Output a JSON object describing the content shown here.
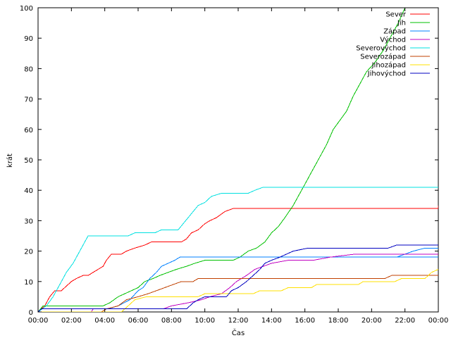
{
  "chart_data": {
    "type": "line",
    "title": "",
    "xlabel": "Čas",
    "ylabel": "krát",
    "xlim": [
      0,
      24
    ],
    "ylim": [
      0,
      100
    ],
    "grid": false,
    "legend_position": "top-right",
    "x_ticks": [
      {
        "v": 0,
        "label": "00:00"
      },
      {
        "v": 2,
        "label": "02:00"
      },
      {
        "v": 4,
        "label": "04:00"
      },
      {
        "v": 6,
        "label": "06:00"
      },
      {
        "v": 8,
        "label": "08:00"
      },
      {
        "v": 10,
        "label": "10:00"
      },
      {
        "v": 12,
        "label": "12:00"
      },
      {
        "v": 14,
        "label": "14:00"
      },
      {
        "v": 16,
        "label": "16:00"
      },
      {
        "v": 18,
        "label": "18:00"
      },
      {
        "v": 20,
        "label": "20:00"
      },
      {
        "v": 22,
        "label": "22:00"
      },
      {
        "v": 24,
        "label": "00:00"
      }
    ],
    "y_ticks": [
      {
        "v": 0,
        "label": "0"
      },
      {
        "v": 10,
        "label": "10"
      },
      {
        "v": 20,
        "label": "20"
      },
      {
        "v": 30,
        "label": "30"
      },
      {
        "v": 40,
        "label": "40"
      },
      {
        "v": 50,
        "label": "50"
      },
      {
        "v": 60,
        "label": "60"
      },
      {
        "v": 70,
        "label": "70"
      },
      {
        "v": 80,
        "label": "80"
      },
      {
        "v": 90,
        "label": "90"
      },
      {
        "v": 100,
        "label": "100"
      }
    ],
    "series": [
      {
        "name": "Sever",
        "color": "#ff0000",
        "points": [
          [
            0,
            0
          ],
          [
            0.4,
            2
          ],
          [
            0.7,
            5
          ],
          [
            1.0,
            7
          ],
          [
            1.4,
            7
          ],
          [
            1.6,
            8
          ],
          [
            1.8,
            9
          ],
          [
            2.0,
            10
          ],
          [
            2.3,
            11
          ],
          [
            2.7,
            12
          ],
          [
            3.0,
            12
          ],
          [
            3.3,
            13
          ],
          [
            3.6,
            14
          ],
          [
            3.9,
            15
          ],
          [
            4.1,
            17
          ],
          [
            4.4,
            19
          ],
          [
            5.0,
            19
          ],
          [
            5.3,
            20
          ],
          [
            5.8,
            21
          ],
          [
            6.4,
            22
          ],
          [
            6.8,
            23
          ],
          [
            8.6,
            23
          ],
          [
            8.9,
            24
          ],
          [
            9.2,
            26
          ],
          [
            9.6,
            27
          ],
          [
            10.0,
            29
          ],
          [
            10.3,
            30
          ],
          [
            10.7,
            31
          ],
          [
            11.2,
            33
          ],
          [
            11.7,
            34
          ],
          [
            24,
            34
          ],
          [
            24,
            35
          ]
        ]
      },
      {
        "name": "Jih",
        "color": "#00c000",
        "points": [
          [
            0,
            0
          ],
          [
            0.3,
            2
          ],
          [
            3.9,
            2
          ],
          [
            4.3,
            3
          ],
          [
            4.8,
            5
          ],
          [
            5.2,
            6
          ],
          [
            5.6,
            7
          ],
          [
            6.0,
            8
          ],
          [
            6.4,
            10
          ],
          [
            6.9,
            11
          ],
          [
            7.3,
            12
          ],
          [
            7.8,
            13
          ],
          [
            8.3,
            14
          ],
          [
            8.9,
            15
          ],
          [
            9.4,
            16
          ],
          [
            10.0,
            17
          ],
          [
            11.7,
            17
          ],
          [
            12.1,
            18
          ],
          [
            12.6,
            20
          ],
          [
            13.1,
            21
          ],
          [
            13.6,
            23
          ],
          [
            14.0,
            26
          ],
          [
            14.4,
            28
          ],
          [
            14.8,
            31
          ],
          [
            15.3,
            35
          ],
          [
            15.6,
            38
          ],
          [
            16.0,
            42
          ],
          [
            16.4,
            46
          ],
          [
            16.8,
            50
          ],
          [
            17.3,
            55
          ],
          [
            17.7,
            60
          ],
          [
            18.1,
            63
          ],
          [
            18.5,
            66
          ],
          [
            18.9,
            71
          ],
          [
            19.3,
            75
          ],
          [
            19.7,
            79
          ],
          [
            20.2,
            82
          ],
          [
            20.7,
            86
          ],
          [
            21.2,
            91
          ],
          [
            21.6,
            95
          ],
          [
            22.0,
            100
          ]
        ]
      },
      {
        "name": "Západ",
        "color": "#0080ff",
        "points": [
          [
            0,
            0
          ],
          [
            0.2,
            1
          ],
          [
            4.2,
            1
          ],
          [
            4.8,
            2
          ],
          [
            5.5,
            4
          ],
          [
            6.0,
            7
          ],
          [
            6.3,
            8
          ],
          [
            6.7,
            11
          ],
          [
            7.1,
            13
          ],
          [
            7.4,
            15
          ],
          [
            7.8,
            16
          ],
          [
            8.2,
            17
          ],
          [
            8.5,
            18
          ],
          [
            24,
            18
          ],
          [
            21.5,
            18
          ],
          [
            22.0,
            19
          ],
          [
            22.5,
            20
          ],
          [
            23.2,
            21
          ],
          [
            24,
            21
          ]
        ]
      },
      {
        "name": "Východ",
        "color": "#c000c0",
        "points": [
          [
            0,
            0
          ],
          [
            3.2,
            0
          ],
          [
            3.3,
            1
          ],
          [
            7.5,
            1
          ],
          [
            8.0,
            2
          ],
          [
            9.0,
            3
          ],
          [
            9.8,
            4
          ],
          [
            10.3,
            5
          ],
          [
            11.0,
            6
          ],
          [
            11.5,
            8
          ],
          [
            11.9,
            10
          ],
          [
            12.5,
            12
          ],
          [
            13.0,
            14
          ],
          [
            13.5,
            15
          ],
          [
            14.0,
            16
          ],
          [
            15.0,
            17
          ],
          [
            16.5,
            17
          ],
          [
            17.5,
            18
          ],
          [
            19.0,
            19
          ],
          [
            24,
            19
          ]
        ]
      },
      {
        "name": "Severovýchod",
        "color": "#00e0e0",
        "points": [
          [
            0,
            0
          ],
          [
            0.5,
            2
          ],
          [
            0.9,
            5
          ],
          [
            1.3,
            9
          ],
          [
            1.7,
            13
          ],
          [
            2.1,
            16
          ],
          [
            2.5,
            20
          ],
          [
            2.8,
            23
          ],
          [
            3.0,
            25
          ],
          [
            5.4,
            25
          ],
          [
            5.8,
            26
          ],
          [
            7.0,
            26
          ],
          [
            7.4,
            27
          ],
          [
            8.4,
            27
          ],
          [
            8.7,
            29
          ],
          [
            9.0,
            31
          ],
          [
            9.3,
            33
          ],
          [
            9.6,
            35
          ],
          [
            10.0,
            36
          ],
          [
            10.4,
            38
          ],
          [
            11.0,
            39
          ],
          [
            12.6,
            39
          ],
          [
            13.0,
            40
          ],
          [
            13.5,
            41
          ],
          [
            24,
            41
          ]
        ]
      },
      {
        "name": "Severozápad",
        "color": "#c04000",
        "points": [
          [
            0,
            0
          ],
          [
            3.8,
            0
          ],
          [
            4.1,
            1
          ],
          [
            4.8,
            2
          ],
          [
            5.3,
            4
          ],
          [
            6.0,
            5
          ],
          [
            6.6,
            6
          ],
          [
            7.1,
            7
          ],
          [
            7.6,
            8
          ],
          [
            8.1,
            9
          ],
          [
            8.6,
            10
          ],
          [
            9.3,
            10
          ],
          [
            9.6,
            11
          ],
          [
            20.8,
            11
          ],
          [
            21.2,
            12
          ],
          [
            24,
            12
          ]
        ]
      },
      {
        "name": "Jihozápad",
        "color": "#ffe000",
        "points": [
          [
            0,
            0
          ],
          [
            5.0,
            0
          ],
          [
            5.4,
            2
          ],
          [
            5.8,
            4
          ],
          [
            6.5,
            5
          ],
          [
            9.6,
            5
          ],
          [
            10.0,
            6
          ],
          [
            12.9,
            6
          ],
          [
            13.3,
            7
          ],
          [
            14.6,
            7
          ],
          [
            15.0,
            8
          ],
          [
            16.4,
            8
          ],
          [
            16.7,
            9
          ],
          [
            19.2,
            9
          ],
          [
            19.5,
            10
          ],
          [
            21.4,
            10
          ],
          [
            21.8,
            11
          ],
          [
            23.2,
            11
          ],
          [
            23.6,
            13
          ],
          [
            24,
            14
          ]
        ]
      },
      {
        "name": "Jihovýchod",
        "color": "#0000c0",
        "points": [
          [
            0,
            0
          ],
          [
            0.2,
            1
          ],
          [
            8.9,
            1
          ],
          [
            9.1,
            2
          ],
          [
            9.3,
            3
          ],
          [
            9.6,
            4
          ],
          [
            10.0,
            5
          ],
          [
            11.3,
            5
          ],
          [
            11.6,
            7
          ],
          [
            12.0,
            8
          ],
          [
            12.5,
            10
          ],
          [
            12.9,
            12
          ],
          [
            13.3,
            14
          ],
          [
            13.6,
            16
          ],
          [
            14.0,
            17
          ],
          [
            14.5,
            18
          ],
          [
            14.9,
            19
          ],
          [
            15.3,
            20
          ],
          [
            16.2,
            21
          ],
          [
            21.0,
            21
          ],
          [
            21.5,
            22
          ],
          [
            24,
            22
          ]
        ]
      }
    ]
  }
}
